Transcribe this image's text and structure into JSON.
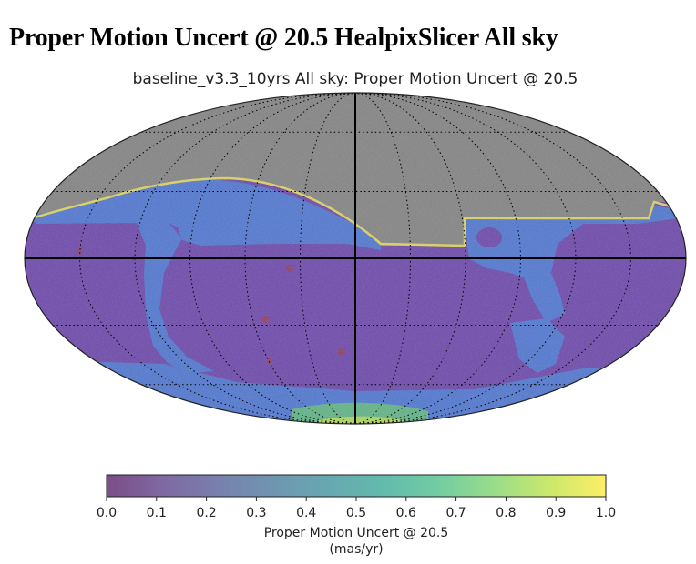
{
  "page": {
    "heading": "Proper Motion Uncert @ 20.5 HealpixSlicer All sky"
  },
  "chart_data": {
    "type": "heatmap",
    "projection": "mollweide",
    "title": "baseline_v3.3_10yrs All sky: Proper Motion Uncert @ 20.5",
    "colorbar": {
      "label": "Proper Motion Uncert @ 20.5",
      "units": "(mas/yr)",
      "range": [
        0.0,
        1.0
      ],
      "ticks": [
        0.0,
        0.1,
        0.2,
        0.3,
        0.4,
        0.5,
        0.6,
        0.7,
        0.8,
        0.9,
        1.0
      ],
      "tick_labels": [
        "0.0",
        "0.1",
        "0.2",
        "0.3",
        "0.4",
        "0.5",
        "0.6",
        "0.7",
        "0.8",
        "0.9",
        "1.0"
      ],
      "colormap": "viridis",
      "alpha": 0.7
    },
    "colors": {
      "no_data": "#808080",
      "graticule": "#000000"
    },
    "graticule": true
  }
}
